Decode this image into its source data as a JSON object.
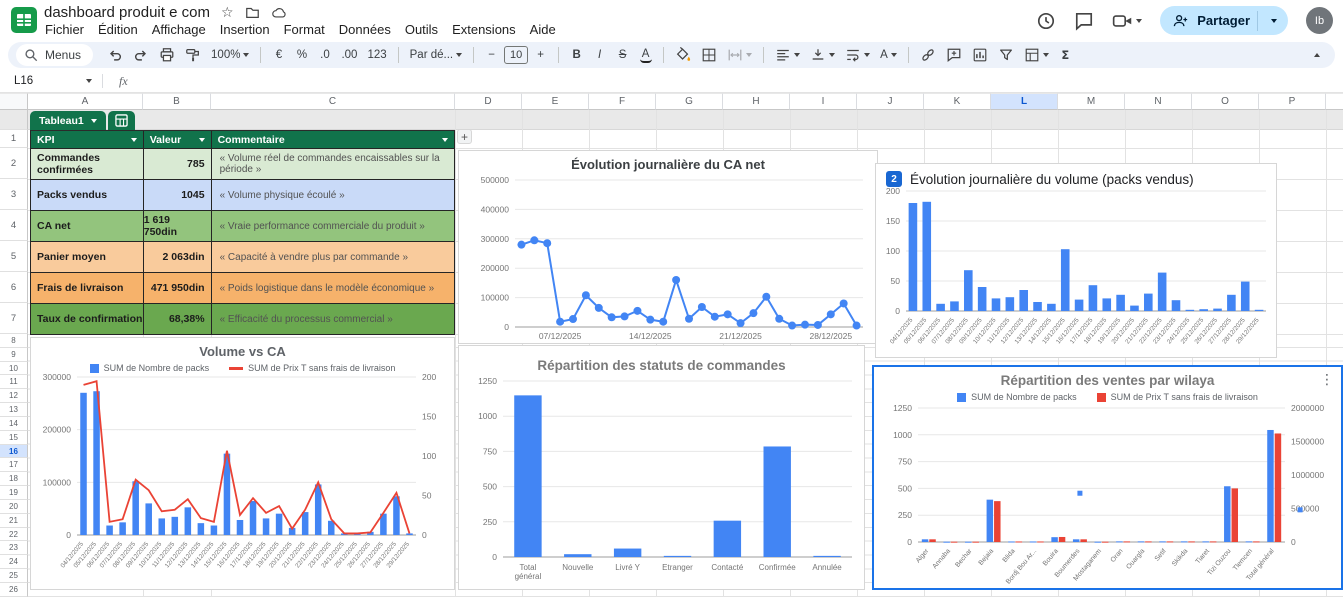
{
  "header": {
    "doc_title": "dashboard produit e com",
    "menus": [
      "Fichier",
      "Édition",
      "Affichage",
      "Insertion",
      "Format",
      "Données",
      "Outils",
      "Extensions",
      "Aide"
    ],
    "share_label": "Partager",
    "avatar_initials": "Ib"
  },
  "toolbar": {
    "search_label": "Menus",
    "zoom_value": "100%",
    "euro": "€",
    "percent": "%",
    "dec_dec": ".0",
    "dec_inc": ".00",
    "fmt_123": "123",
    "font_name": "Par dé...",
    "minus": "−",
    "font_size": "10",
    "plus": "+",
    "bold": "B",
    "italic": "I",
    "strike": "S",
    "text_color": "A",
    "rotate": "A",
    "sigma": "Σ"
  },
  "formula_bar": {
    "cell_ref": "L16",
    "fx_label": "fx"
  },
  "grid": {
    "column_headers": [
      "A",
      "B",
      "C",
      "D",
      "E",
      "F",
      "G",
      "H",
      "I",
      "J",
      "K",
      "L",
      "M",
      "N",
      "O",
      "P"
    ],
    "selected_column": "L",
    "selected_row": 16,
    "row_count": 26
  },
  "kpi_table": {
    "tab_name": "Tableau1",
    "headers": [
      "KPI",
      "Valeur",
      "Commentaire"
    ],
    "rows": [
      {
        "kpi": "Commandes confirmées",
        "valeur": "785",
        "commentaire": "« Volume réel de commandes encaissables sur la période »",
        "bg": "#d9ead3"
      },
      {
        "kpi": "Packs vendus",
        "valeur": "1045",
        "commentaire": "« Volume physique écoulé »",
        "bg": "#c9daf8"
      },
      {
        "kpi": "CA net",
        "valeur": "1 619 750din",
        "commentaire": "« Vraie performance commerciale du produit »",
        "bg": "#93c47d"
      },
      {
        "kpi": "Panier moyen",
        "valeur": "2 063din",
        "commentaire": "« Capacité à vendre plus par commande »",
        "bg": "#f9cb9c"
      },
      {
        "kpi": "Frais de livraison",
        "valeur": "471 950din",
        "commentaire": "« Poids logistique dans le modèle économique »",
        "bg": "#f6b26b"
      },
      {
        "kpi": "Taux de confirmation",
        "valeur": "68,38%",
        "commentaire": "« Efficacité du processus commercial »",
        "bg": "#6aa84f"
      }
    ]
  },
  "chart_data": [
    {
      "id": "ca-net-line",
      "type": "line",
      "title": "Évolution journalière du CA net",
      "x": [
        "04/12/2025",
        "05/12/2025",
        "06/12/2025",
        "07/12/2025",
        "08/12/2025",
        "09/12/2025",
        "10/12/2025",
        "11/12/2025",
        "12/12/2025",
        "13/12/2025",
        "14/12/2025",
        "15/12/2025",
        "16/12/2025",
        "17/12/2025",
        "18/12/2025",
        "19/12/2025",
        "20/12/2025",
        "21/12/2025",
        "22/12/2025",
        "23/12/2025",
        "24/12/2025",
        "25/12/2025",
        "26/12/2025",
        "27/12/2025",
        "28/12/2025",
        "29/12/2025",
        "30/12/2025"
      ],
      "values": [
        280000,
        295000,
        285000,
        18000,
        27000,
        108000,
        65000,
        33000,
        36000,
        55000,
        25000,
        18000,
        160000,
        28000,
        68000,
        35000,
        43000,
        13000,
        47000,
        103000,
        28000,
        5000,
        8000,
        7000,
        43000,
        80000,
        5000
      ],
      "yticks": [
        "0",
        "100000",
        "200000",
        "300000",
        "400000",
        "500000"
      ],
      "xticks": [
        "07/12/2025",
        "14/12/2025",
        "21/12/2025",
        "28/12/2025"
      ],
      "series_color": "#4285f4"
    },
    {
      "id": "volume-bars",
      "type": "bar",
      "badge": "2",
      "title": "Évolution journalière du volume (packs vendus)",
      "categories": [
        "04/12/2025",
        "05/12/2025",
        "06/12/2025",
        "07/12/2025",
        "08/12/2025",
        "09/12/2025",
        "10/12/2025",
        "11/12/2025",
        "12/12/2025",
        "13/12/2025",
        "14/12/2025",
        "15/12/2025",
        "16/12/2025",
        "17/12/2025",
        "18/12/2025",
        "19/12/2025",
        "20/12/2025",
        "21/12/2025",
        "22/12/2025",
        "23/12/2025",
        "24/12/2025",
        "25/12/2025",
        "26/12/2025",
        "27/12/2025",
        "28/12/2025",
        "29/12/2025"
      ],
      "values": [
        180,
        182,
        12,
        16,
        68,
        40,
        21,
        23,
        35,
        15,
        12,
        103,
        19,
        43,
        21,
        27,
        9,
        29,
        64,
        18,
        2,
        3,
        4,
        27,
        49,
        2
      ],
      "yticks": [
        "0",
        "50",
        "100",
        "150",
        "200"
      ],
      "bar_color": "#4285f4"
    },
    {
      "id": "volume-vs-ca",
      "type": "combo",
      "title": "Volume vs CA",
      "legend": [
        {
          "label": "SUM de Nombre de packs",
          "color": "#4285f4",
          "marker": "square"
        },
        {
          "label": "SUM de Prix T sans frais de livraison",
          "color": "#ea4335",
          "marker": "line"
        }
      ],
      "categories": [
        "04/12/2025",
        "05/12/2025",
        "06/12/2025",
        "07/12/2025",
        "08/12/2025",
        "09/12/2025",
        "10/12/2025",
        "11/12/2025",
        "12/12/2025",
        "13/12/2025",
        "14/12/2025",
        "15/12/2025",
        "16/12/2025",
        "17/12/2025",
        "18/12/2025",
        "19/12/2025",
        "20/12/2025",
        "21/12/2025",
        "22/12/2025",
        "23/12/2025",
        "24/12/2025",
        "25/12/2025",
        "26/12/2025",
        "27/12/2025",
        "28/12/2025",
        "29/12/2025"
      ],
      "bars": {
        "name": "SUM de Nombre de packs",
        "axis": "right",
        "values": [
          180,
          182,
          12,
          16,
          68,
          40,
          21,
          23,
          35,
          15,
          12,
          103,
          19,
          43,
          21,
          27,
          9,
          29,
          64,
          18,
          2,
          3,
          4,
          27,
          49,
          2
        ]
      },
      "line": {
        "name": "SUM de Prix T sans frais de livraison",
        "axis": "left",
        "values": [
          285000,
          292000,
          25000,
          30000,
          105000,
          85000,
          45000,
          48000,
          68000,
          32000,
          25000,
          160000,
          38000,
          70000,
          42000,
          55000,
          12000,
          48000,
          100000,
          30000,
          3000,
          3000,
          5000,
          42000,
          80000,
          3000
        ]
      },
      "yticks_left": [
        "0",
        "100000",
        "200000",
        "300000"
      ],
      "yticks_right": [
        "0",
        "50",
        "100",
        "150",
        "200"
      ]
    },
    {
      "id": "statuts",
      "type": "bar",
      "title": "Répartition des statuts de commandes",
      "categories": [
        "Total général",
        "Nouvelle",
        "Livré Y",
        "Etranger",
        "Contacté",
        "Confirmée",
        "Annulée"
      ],
      "values": [
        1148,
        20,
        60,
        8,
        258,
        785,
        8
      ],
      "yticks": [
        "0",
        "250",
        "500",
        "750",
        "1000",
        "1250"
      ],
      "bar_color": "#4285f4",
      "wrap_labels": true
    },
    {
      "id": "wilaya",
      "type": "grouped",
      "selected": true,
      "title": "Répartition des ventes par wilaya",
      "legend": [
        {
          "label": "SUM de Nombre de packs",
          "color": "#4285f4",
          "marker": "square"
        },
        {
          "label": "SUM de Prix T sans frais de livraison",
          "color": "#ea4335",
          "marker": "square"
        }
      ],
      "categories": [
        "Alger",
        "Annaba",
        "Bechar",
        "Bejaia",
        "Blida",
        "Bordj Bou Ar...",
        "Bouira",
        "Boumerdes",
        "Mostaganem",
        "Oran",
        "Ouargla",
        "Setif",
        "Skikda",
        "Tiaret",
        "Tizi Ouzou",
        "Tlemcen",
        "Total général"
      ],
      "series": [
        {
          "name": "SUM de Nombre de packs",
          "axis": "left",
          "color": "#4285f4",
          "values": [
            25,
            3,
            3,
            395,
            5,
            5,
            45,
            25,
            3,
            6,
            6,
            6,
            6,
            6,
            520,
            6,
            1045
          ]
        },
        {
          "name": "SUM de Prix T sans frais de livraison",
          "axis": "right",
          "color": "#ea4335",
          "values": [
            40000,
            5000,
            5000,
            610000,
            8000,
            8000,
            75000,
            40000,
            5000,
            9000,
            9000,
            9000,
            9000,
            9000,
            800000,
            9000,
            1619750
          ]
        }
      ],
      "yticks_left": [
        "0",
        "250",
        "500",
        "750",
        "1000",
        "1250"
      ],
      "yticks_right": [
        "0",
        "500000",
        "1000000",
        "1500000",
        "2000000"
      ],
      "stray_markers": [
        {
          "x_index": 7,
          "left_value": 455
        },
        {
          "x_index": 17.2,
          "left_value": 300
        }
      ]
    }
  ]
}
